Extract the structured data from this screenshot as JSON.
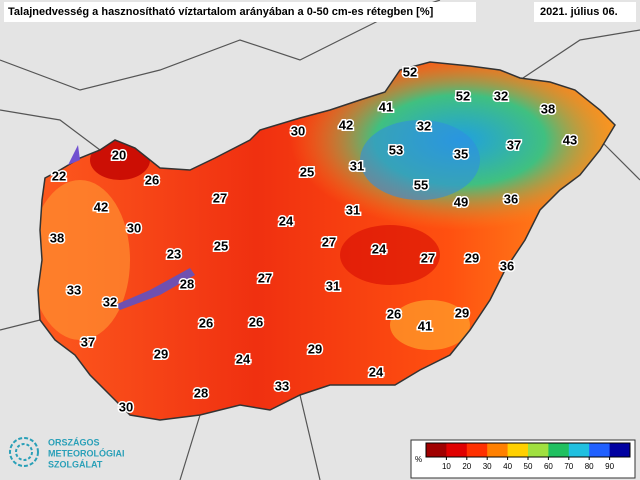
{
  "header": {
    "title": "Talajnedvesség a hasznosítható víztartalom arányában a 0-50 cm-es rétegben [%]",
    "date": "2021. július 06."
  },
  "stations": [
    52,
    52,
    32,
    38,
    41,
    42,
    30,
    32,
    37,
    43,
    53,
    35,
    20,
    31,
    25,
    55,
    22,
    26,
    27,
    49,
    36,
    42,
    31,
    24,
    30,
    38,
    27,
    25,
    24,
    23,
    27,
    29,
    36,
    28,
    27,
    31,
    33,
    32,
    26,
    29,
    41,
    26,
    26,
    37,
    29,
    29,
    24,
    24,
    33,
    28,
    30
  ],
  "colorbar": {
    "unit": "%",
    "lim": [
      0,
      100
    ],
    "ticks": [
      10,
      20,
      30,
      40,
      50,
      60,
      70,
      80,
      90
    ],
    "colors": [
      "#a00000",
      "#e00000",
      "#ff3000",
      "#ff8000",
      "#ffd000",
      "#a0e040",
      "#20c060",
      "#20c0e0",
      "#2060ff",
      "#0000a0"
    ]
  },
  "logo": {
    "lines": [
      "ORSZÁGOS",
      "METEOROLÓGIAI",
      "SZOLGÁLAT"
    ]
  }
}
